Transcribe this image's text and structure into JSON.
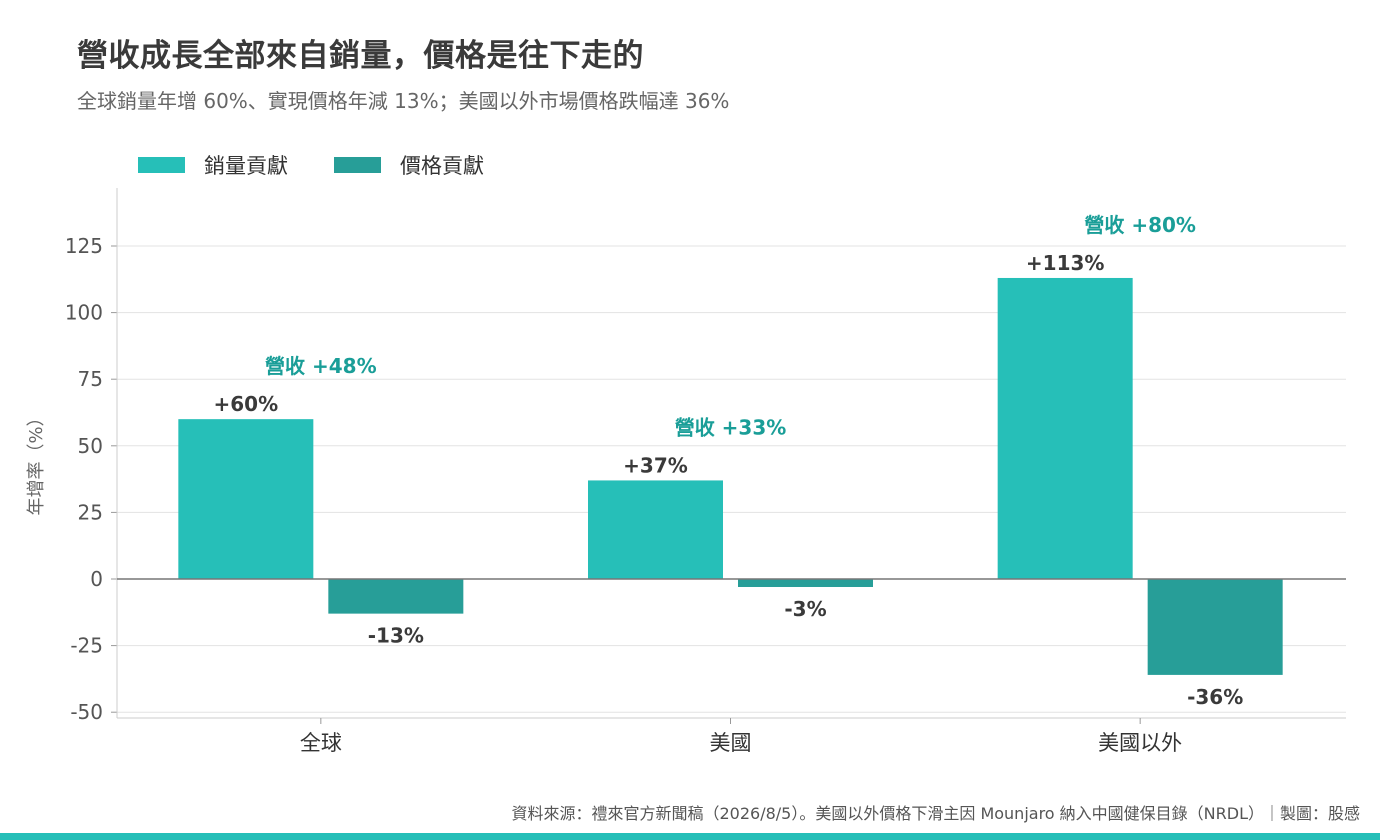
{
  "header": {
    "title": "營收成長全部來自銷量，價格是往下走的",
    "subtitle": "全球銷量年增 60%、實現價格年減 13%；美國以外市場價格跌幅達 36%"
  },
  "colors": {
    "volume": "#26bfb8",
    "price": "#279e98",
    "revenue_label": "#1a9e98",
    "accent_bar": "#26bfb8"
  },
  "footer": {
    "source": "資料來源：禮來官方新聞稿（2026/8/5）。美國以外價格下滑主因 Mounjaro 納入中國健保目錄（NRDL）｜製圖：股感"
  },
  "chart_data": {
    "type": "bar",
    "categories": [
      "全球",
      "美國",
      "美國以外"
    ],
    "series": [
      {
        "name": "銷量貢獻",
        "values": [
          60,
          37,
          113
        ],
        "labels": [
          "+60%",
          "+37%",
          "+113%"
        ]
      },
      {
        "name": "價格貢獻",
        "values": [
          -13,
          -3,
          -36
        ],
        "labels": [
          "-13%",
          "-3%",
          "-36%"
        ]
      }
    ],
    "annotations": [
      "營收 +48%",
      "營收 +33%",
      "營收 +80%"
    ],
    "ylabel": "年增率（%）",
    "ylim": [
      -50,
      140
    ],
    "yticks": [
      -50,
      -25,
      0,
      25,
      50,
      75,
      100,
      125
    ],
    "grid": true,
    "legend": "top-left"
  }
}
